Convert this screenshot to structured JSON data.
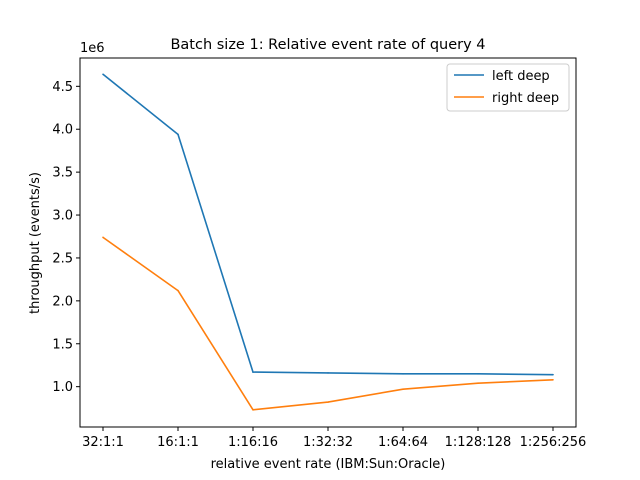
{
  "chart_data": {
    "type": "line",
    "title": "Batch size 1: Relative event rate of query 4",
    "xlabel": "relative event rate (IBM:Sun:Oracle)",
    "ylabel": "throughput (events/s)",
    "y_offset_text": "1e6",
    "categories": [
      "32:1:1",
      "16:1:1",
      "1:16:16",
      "1:32:32",
      "1:64:64",
      "1:128:128",
      "1:256:256"
    ],
    "ylim": [
      530000,
      4830000
    ],
    "yticks": [
      1000000,
      1500000,
      2000000,
      2500000,
      3000000,
      3500000,
      4000000,
      4500000
    ],
    "ytick_labels": [
      "1.0",
      "1.5",
      "2.0",
      "2.5",
      "3.0",
      "3.5",
      "4.0",
      "4.5"
    ],
    "grid": false,
    "legend_position": "top-right",
    "series": [
      {
        "name": "left deep",
        "color": "#1f77b4",
        "values": [
          4640000,
          3940000,
          1170000,
          1160000,
          1150000,
          1150000,
          1140000
        ]
      },
      {
        "name": "right deep",
        "color": "#ff7f0e",
        "values": [
          2740000,
          2120000,
          730000,
          820000,
          970000,
          1040000,
          1080000
        ]
      }
    ]
  }
}
